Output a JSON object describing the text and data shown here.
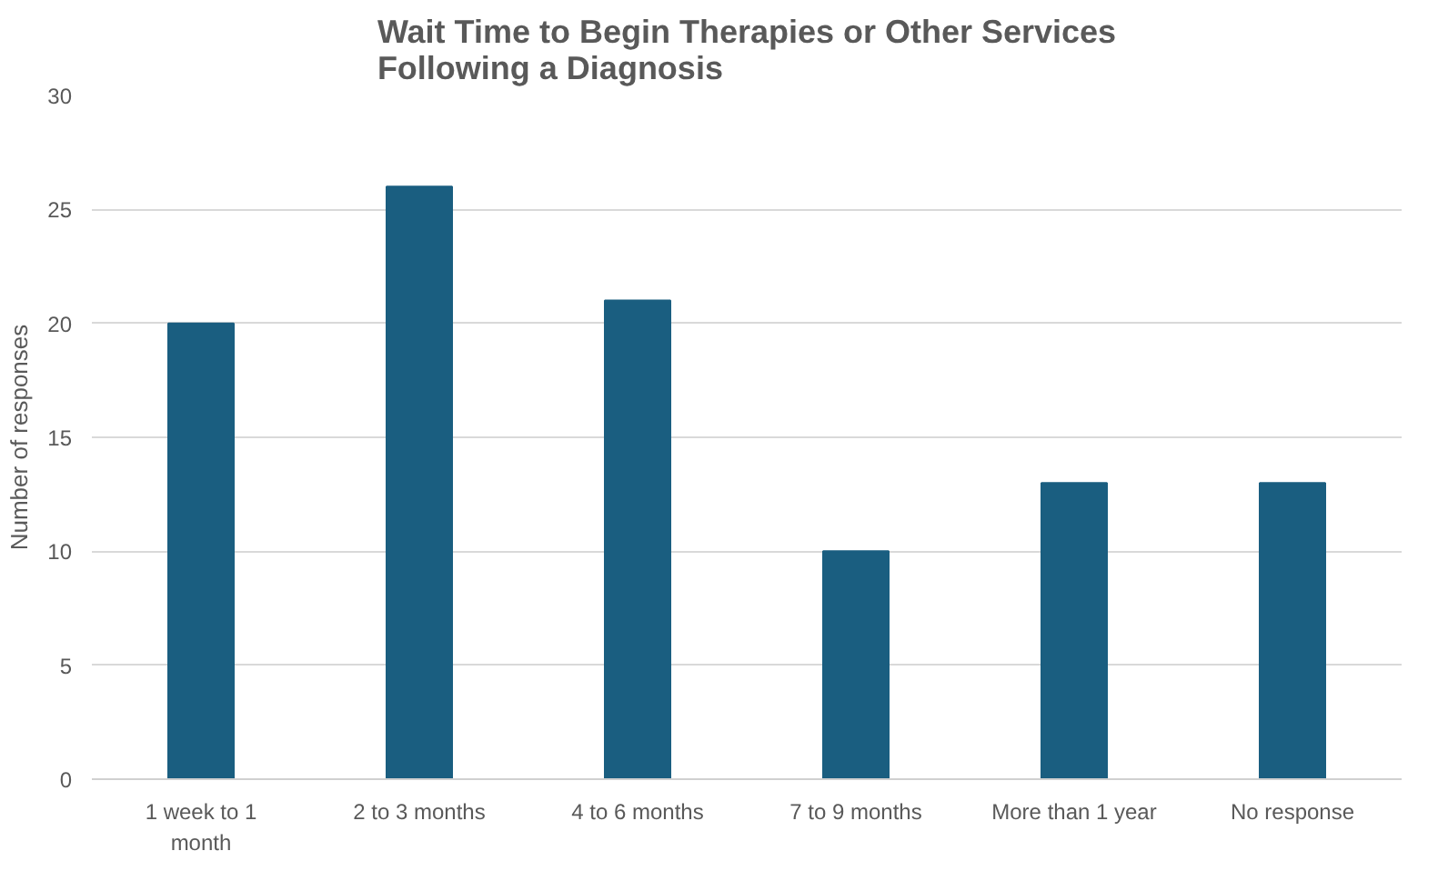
{
  "chart_data": {
    "type": "bar",
    "title": "Wait Time to Begin Therapies or Other Services Following a Diagnosis",
    "ylabel": "Number of responses",
    "categories": [
      "1 week to 1 month",
      "2 to 3 months",
      "4 to 6 months",
      "7 to 9 months",
      "More than 1 year",
      "No response"
    ],
    "values": [
      20,
      26,
      21,
      10,
      13,
      13
    ],
    "color": "#1a5e80",
    "ylim": [
      0,
      30
    ],
    "yticks": [
      0,
      5,
      10,
      15,
      20,
      25,
      30
    ],
    "grid": "y"
  }
}
